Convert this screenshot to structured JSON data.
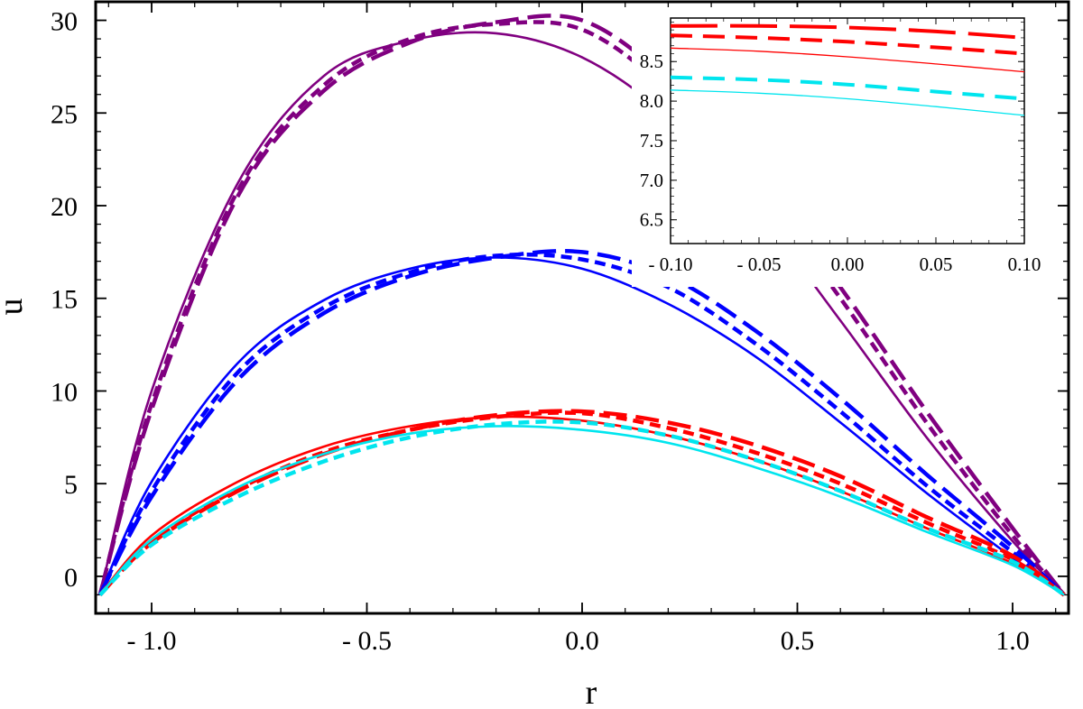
{
  "chart_data": [
    {
      "type": "line",
      "panel": "main",
      "xlabel": "r",
      "ylabel": "u",
      "xlim": [
        -1.13,
        1.13
      ],
      "ylim": [
        -2,
        31
      ],
      "x_ticks": [
        -1.0,
        -0.5,
        0.0,
        0.5,
        1.0
      ],
      "x_tick_labels": [
        "- 1.0",
        "- 0.5",
        "0.0",
        "0.5",
        "1.0"
      ],
      "y_ticks": [
        0,
        5,
        10,
        15,
        20,
        25,
        30
      ],
      "y_tick_labels": [
        "0",
        "5",
        "10",
        "15",
        "20",
        "25",
        "30"
      ],
      "grid": false,
      "legend": "none",
      "x": [
        -1.12,
        -1.0,
        -0.8,
        -0.6,
        -0.4,
        -0.2,
        0.0,
        0.2,
        0.4,
        0.6,
        0.8,
        1.0,
        1.12
      ],
      "series": [
        {
          "color": "#800080",
          "style": "solid",
          "values": [
            -1.0,
            10.0,
            21.2,
            27.0,
            28.9,
            29.3,
            28.0,
            24.8,
            19.9,
            13.8,
            7.5,
            1.9,
            -1.0
          ]
        },
        {
          "color": "#800080",
          "style": "dashed",
          "values": [
            -1.0,
            9.3,
            20.8,
            26.5,
            29.0,
            29.8,
            29.5,
            26.2,
            21.1,
            15.0,
            8.3,
            2.2,
            -1.0
          ]
        },
        {
          "color": "#800080",
          "style": "longdash",
          "values": [
            -1.0,
            9.0,
            20.5,
            26.2,
            28.8,
            29.9,
            30.0,
            26.8,
            21.8,
            15.6,
            8.9,
            2.6,
            -1.0
          ]
        },
        {
          "color": "#0000ff",
          "style": "solid",
          "values": [
            -1.0,
            5.1,
            11.5,
            14.9,
            16.6,
            17.2,
            16.6,
            14.7,
            11.9,
            8.3,
            4.5,
            1.0,
            -1.0
          ]
        },
        {
          "color": "#0000ff",
          "style": "dashed",
          "values": [
            -1.0,
            4.6,
            11.0,
            14.5,
            16.4,
            17.3,
            17.1,
            15.6,
            12.6,
            8.9,
            4.9,
            1.3,
            -1.0
          ]
        },
        {
          "color": "#0000ff",
          "style": "longdash",
          "values": [
            -1.0,
            4.3,
            10.6,
            14.2,
            16.2,
            17.2,
            17.5,
            16.2,
            13.3,
            9.6,
            5.5,
            1.6,
            -1.0
          ]
        },
        {
          "color": "#ff0000",
          "style": "solid",
          "values": [
            -1.0,
            2.2,
            5.1,
            7.0,
            8.1,
            8.6,
            8.4,
            7.6,
            6.3,
            4.6,
            2.6,
            0.7,
            -1.0
          ]
        },
        {
          "color": "#ff0000",
          "style": "dashed",
          "values": [
            -1.0,
            1.9,
            4.7,
            6.7,
            7.9,
            8.6,
            8.8,
            8.0,
            6.7,
            5.0,
            2.9,
            0.9,
            -1.0
          ]
        },
        {
          "color": "#ff0000",
          "style": "longdash",
          "values": [
            -1.0,
            1.8,
            4.6,
            6.6,
            7.9,
            8.7,
            8.9,
            8.3,
            7.1,
            5.4,
            3.2,
            1.1,
            -1.0
          ]
        },
        {
          "color": "#00e5ee",
          "style": "solid",
          "values": [
            -1.0,
            2.0,
            4.8,
            6.6,
            7.7,
            8.1,
            7.9,
            7.2,
            5.9,
            4.3,
            2.4,
            0.6,
            -1.0
          ]
        },
        {
          "color": "#00e5ee",
          "style": "dashed",
          "values": [
            -1.0,
            1.7,
            4.3,
            6.2,
            7.5,
            8.2,
            8.3,
            7.6,
            6.3,
            4.6,
            2.6,
            0.8,
            -1.0
          ]
        }
      ]
    },
    {
      "type": "line",
      "panel": "inset",
      "xlim": [
        -0.1,
        0.1
      ],
      "ylim": [
        6.2,
        9.05
      ],
      "x_ticks": [
        -0.1,
        -0.05,
        0.0,
        0.05,
        0.1
      ],
      "x_tick_labels": [
        "- 0.10",
        "- 0.05",
        "0.00",
        "0.05",
        "0.10"
      ],
      "y_ticks": [
        6.5,
        7.0,
        7.5,
        8.0,
        8.5
      ],
      "y_tick_labels": [
        "6.5",
        "7.0",
        "7.5",
        "8.0",
        "8.5"
      ],
      "grid": false,
      "legend": "none",
      "x": [
        -0.1,
        -0.05,
        0.0,
        0.05,
        0.1
      ],
      "series": [
        {
          "color": "#ff0000",
          "style": "longdash",
          "values": [
            8.95,
            8.95,
            8.93,
            8.88,
            8.8
          ]
        },
        {
          "color": "#ff0000",
          "style": "dashed",
          "values": [
            8.83,
            8.8,
            8.75,
            8.68,
            8.6
          ]
        },
        {
          "color": "#ff0000",
          "style": "solid",
          "values": [
            8.67,
            8.63,
            8.56,
            8.47,
            8.37
          ]
        },
        {
          "color": "#00e5ee",
          "style": "dashed",
          "values": [
            8.3,
            8.27,
            8.21,
            8.12,
            8.03
          ]
        },
        {
          "color": "#00e5ee",
          "style": "solid",
          "values": [
            8.14,
            8.1,
            8.03,
            7.93,
            7.82
          ]
        }
      ]
    }
  ]
}
